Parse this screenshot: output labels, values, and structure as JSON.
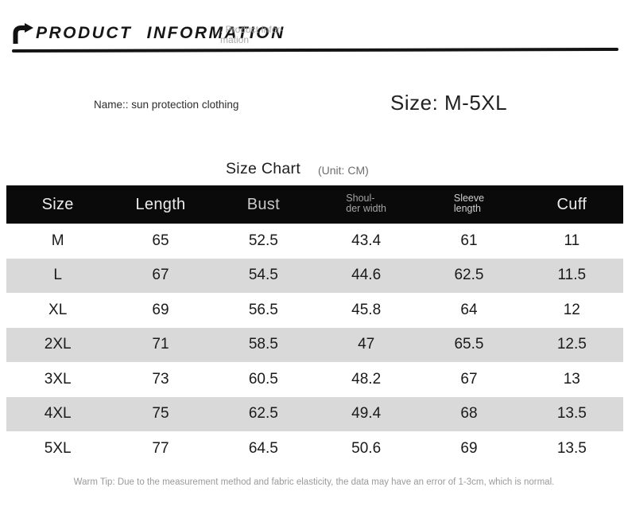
{
  "header": {
    "icon": "turn-right-arrow-icon",
    "title": "PRODUCT INFORMATION",
    "subtitle_line1": ". Product Infor-",
    "subtitle_line2": "mation"
  },
  "product": {
    "name": "Name:: sun protection clothing",
    "size_range": "Size: M-5XL"
  },
  "size_chart": {
    "title": "Size Chart",
    "unit": "(Unit: CM)"
  },
  "table": {
    "columns": [
      {
        "lines": [
          "Size"
        ],
        "style": "large"
      },
      {
        "lines": [
          "Length"
        ],
        "style": "large"
      },
      {
        "lines": [
          "Bust"
        ],
        "style": "large dim"
      },
      {
        "lines": [
          "Shoul-",
          "der width"
        ],
        "style": "small dim"
      },
      {
        "lines": [
          "Sleeve",
          "length"
        ],
        "style": "small"
      },
      {
        "lines": [
          "Cuff"
        ],
        "style": "large"
      }
    ],
    "rows": [
      [
        "M",
        "65",
        "52.5",
        "43.4",
        "61",
        "11"
      ],
      [
        "L",
        "67",
        "54.5",
        "44.6",
        "62.5",
        "11.5"
      ],
      [
        "XL",
        "69",
        "56.5",
        "45.8",
        "64",
        "12"
      ],
      [
        "2XL",
        "71",
        "58.5",
        "47",
        "65.5",
        "12.5"
      ],
      [
        "3XL",
        "73",
        "60.5",
        "48.2",
        "67",
        "13"
      ],
      [
        "4XL",
        "75",
        "62.5",
        "49.4",
        "68",
        "13.5"
      ],
      [
        "5XL",
        "77",
        "64.5",
        "50.6",
        "69",
        "13.5"
      ]
    ]
  },
  "footer": {
    "warm_tip": "Warm Tip: Due to the measurement method and fabric elasticity, the data may have an error of 1-3cm, which is normal."
  },
  "colors": {
    "header_bg": "#0a0a0a",
    "header_text": "#ededed",
    "row_alt_bg": "#d9d9d9",
    "body_text": "#1a1a1a",
    "muted_text": "#9a9a9a"
  }
}
